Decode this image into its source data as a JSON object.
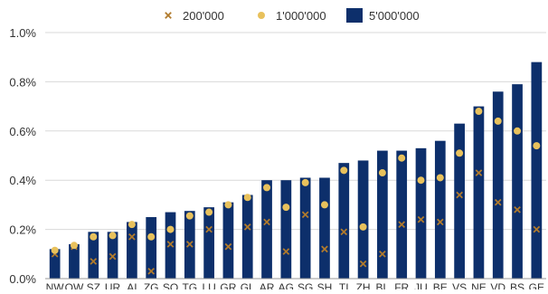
{
  "chart_data": {
    "type": "bar",
    "legend_position": "top",
    "grid": true,
    "ylim": [
      0,
      0.01
    ],
    "yticks": [
      {
        "value": 0.0,
        "label": "0.0%"
      },
      {
        "value": 0.002,
        "label": "0.2%"
      },
      {
        "value": 0.004,
        "label": "0.4%"
      },
      {
        "value": 0.006,
        "label": "0.6%"
      },
      {
        "value": 0.008,
        "label": "0.8%"
      },
      {
        "value": 0.01,
        "label": "1.0%"
      }
    ],
    "categories": [
      "NW",
      "OW",
      "SZ",
      "UR",
      "AI",
      "ZG",
      "SO",
      "TG",
      "LU",
      "GR",
      "GL",
      "AR",
      "AG",
      "SG",
      "SH",
      "TI",
      "ZH",
      "BL",
      "FR",
      "JU",
      "BE",
      "VS",
      "NE",
      "VD",
      "BS",
      "GE"
    ],
    "series": [
      {
        "name": "200'000",
        "kind": "marker-x",
        "color": "#b07a2c",
        "values": [
          0.001,
          0.0013,
          0.0007,
          0.0009,
          0.0017,
          0.0003,
          0.0014,
          0.0014,
          0.002,
          0.0013,
          0.0021,
          0.0023,
          0.0011,
          0.0026,
          0.0012,
          0.0019,
          0.0006,
          0.001,
          0.0022,
          0.0024,
          0.0023,
          0.0034,
          0.0043,
          0.0031,
          0.0028,
          0.002
        ]
      },
      {
        "name": "1'000'000",
        "kind": "marker-dot",
        "color": "#e8c15c",
        "values": [
          0.00115,
          0.00135,
          0.0017,
          0.00175,
          0.0022,
          0.0017,
          0.002,
          0.00255,
          0.0027,
          0.003,
          0.0033,
          0.0037,
          0.0029,
          0.0039,
          0.003,
          0.0044,
          0.0021,
          0.0043,
          0.0049,
          0.004,
          0.0041,
          0.0051,
          0.0068,
          0.0064,
          0.006,
          0.0054
        ]
      },
      {
        "name": "5'000'000",
        "kind": "bar",
        "color": "#0d2f6b",
        "values": [
          0.0012,
          0.0014,
          0.0019,
          0.0019,
          0.0023,
          0.0025,
          0.0027,
          0.00275,
          0.0029,
          0.0031,
          0.0034,
          0.004,
          0.004,
          0.0041,
          0.0041,
          0.0047,
          0.0048,
          0.0052,
          0.0052,
          0.0053,
          0.0056,
          0.0063,
          0.007,
          0.0076,
          0.0079,
          0.0088
        ]
      }
    ]
  }
}
